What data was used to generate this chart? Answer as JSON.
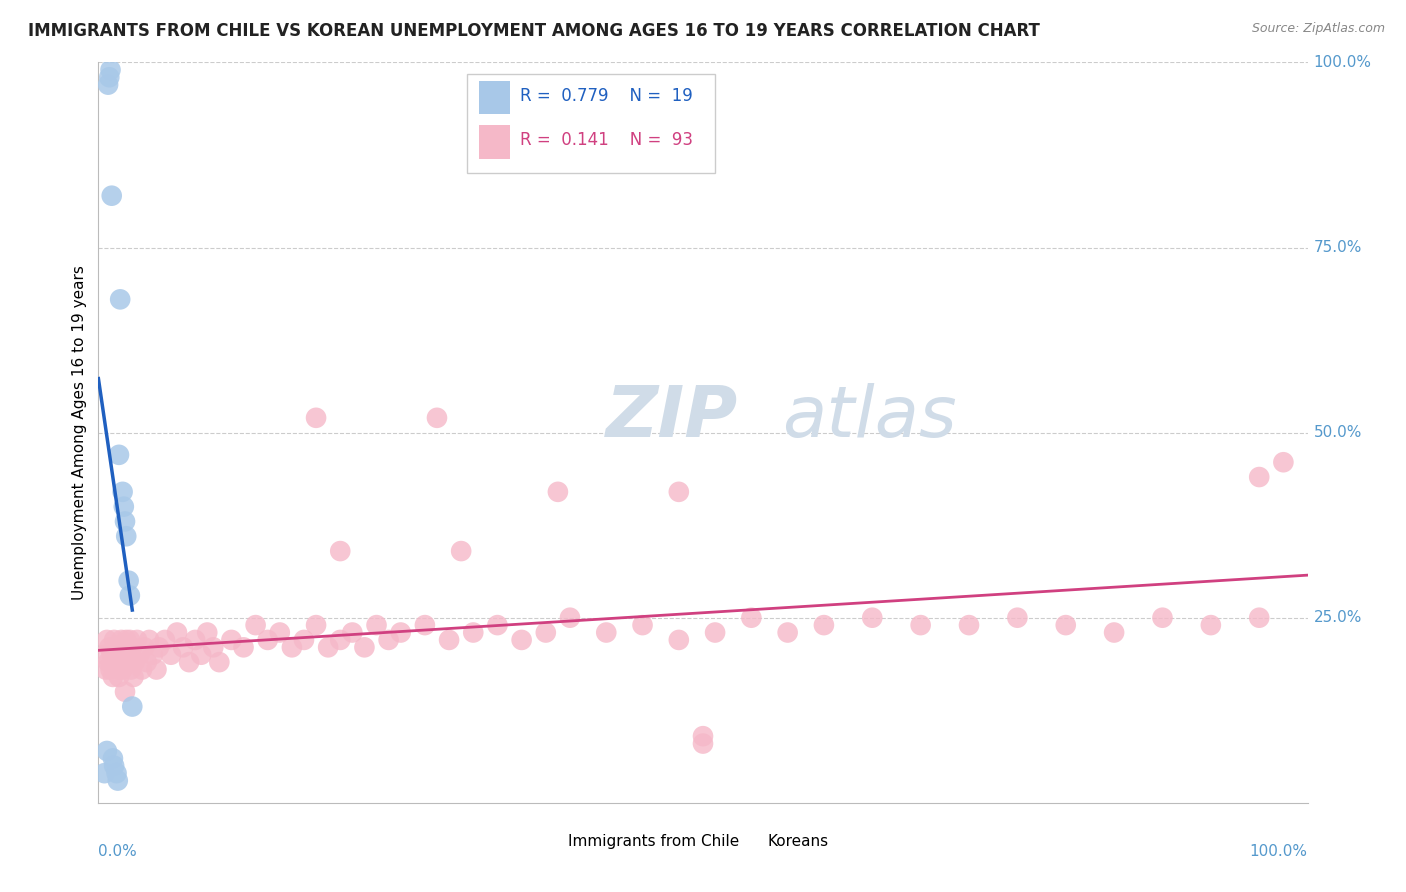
{
  "title": "IMMIGRANTS FROM CHILE VS KOREAN UNEMPLOYMENT AMONG AGES 16 TO 19 YEARS CORRELATION CHART",
  "source": "Source: ZipAtlas.com",
  "ylabel": "Unemployment Among Ages 16 to 19 years",
  "legend1_r": "0.779",
  "legend1_n": "19",
  "legend2_r": "0.141",
  "legend2_n": "93",
  "chile_color": "#a8c8e8",
  "korea_color": "#f5b8c8",
  "chile_line_color": "#2060c0",
  "korea_line_color": "#d04080",
  "watermark_color": "#d0dce8",
  "grid_color": "#cccccc",
  "axis_label_color": "#5599cc",
  "title_color": "#222222",
  "source_color": "#888888",
  "chile_x": [
    0.005,
    0.007,
    0.008,
    0.009,
    0.01,
    0.011,
    0.012,
    0.013,
    0.015,
    0.016,
    0.017,
    0.018,
    0.02,
    0.021,
    0.022,
    0.023,
    0.025,
    0.026,
    0.028
  ],
  "chile_y": [
    0.04,
    0.07,
    0.97,
    0.98,
    0.99,
    0.82,
    0.06,
    0.05,
    0.04,
    0.03,
    0.47,
    0.68,
    0.42,
    0.4,
    0.38,
    0.36,
    0.3,
    0.28,
    0.13
  ],
  "korea_x": [
    0.005,
    0.006,
    0.007,
    0.008,
    0.009,
    0.01,
    0.011,
    0.012,
    0.013,
    0.014,
    0.015,
    0.016,
    0.017,
    0.018,
    0.019,
    0.02,
    0.021,
    0.022,
    0.023,
    0.024,
    0.025,
    0.026,
    0.027,
    0.028,
    0.029,
    0.03,
    0.032,
    0.034,
    0.036,
    0.038,
    0.04,
    0.042,
    0.045,
    0.048,
    0.05,
    0.055,
    0.06,
    0.065,
    0.07,
    0.075,
    0.08,
    0.085,
    0.09,
    0.095,
    0.1,
    0.11,
    0.12,
    0.13,
    0.14,
    0.15,
    0.16,
    0.17,
    0.18,
    0.19,
    0.2,
    0.21,
    0.22,
    0.23,
    0.24,
    0.25,
    0.27,
    0.29,
    0.31,
    0.33,
    0.35,
    0.37,
    0.39,
    0.42,
    0.45,
    0.48,
    0.51,
    0.54,
    0.57,
    0.6,
    0.64,
    0.68,
    0.72,
    0.76,
    0.8,
    0.84,
    0.88,
    0.92,
    0.96,
    0.98,
    0.5,
    0.5,
    0.18,
    0.28,
    0.38,
    0.48,
    0.2,
    0.3,
    0.96
  ],
  "korea_y": [
    0.2,
    0.18,
    0.22,
    0.19,
    0.21,
    0.18,
    0.2,
    0.17,
    0.22,
    0.19,
    0.21,
    0.18,
    0.17,
    0.2,
    0.22,
    0.18,
    0.2,
    0.15,
    0.22,
    0.19,
    0.2,
    0.22,
    0.18,
    0.21,
    0.17,
    0.19,
    0.22,
    0.2,
    0.18,
    0.21,
    0.19,
    0.22,
    0.2,
    0.18,
    0.21,
    0.22,
    0.2,
    0.23,
    0.21,
    0.19,
    0.22,
    0.2,
    0.23,
    0.21,
    0.19,
    0.22,
    0.21,
    0.24,
    0.22,
    0.23,
    0.21,
    0.22,
    0.24,
    0.21,
    0.22,
    0.23,
    0.21,
    0.24,
    0.22,
    0.23,
    0.24,
    0.22,
    0.23,
    0.24,
    0.22,
    0.23,
    0.25,
    0.23,
    0.24,
    0.22,
    0.23,
    0.25,
    0.23,
    0.24,
    0.25,
    0.24,
    0.24,
    0.25,
    0.24,
    0.23,
    0.25,
    0.24,
    0.25,
    0.46,
    0.08,
    0.09,
    0.52,
    0.52,
    0.42,
    0.42,
    0.34,
    0.34,
    0.44
  ],
  "xlim": [
    0.0,
    1.0
  ],
  "ylim": [
    0.0,
    1.0
  ],
  "ytick_positions": [
    0.25,
    0.5,
    0.75,
    1.0
  ],
  "ytick_labels": [
    "25.0%",
    "50.0%",
    "75.0%",
    "100.0%"
  ]
}
